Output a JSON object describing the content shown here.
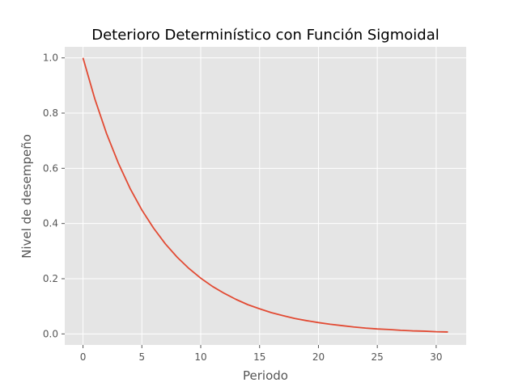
{
  "chart_data": {
    "type": "line",
    "title": "Deterioro Determinístico con Función Sigmoidal",
    "xlabel": "Periodo",
    "ylabel": "Nivel de desempeño",
    "xlim": [
      -1.55,
      32.55
    ],
    "ylim": [
      -0.04,
      1.04
    ],
    "xticks": [
      0,
      5,
      10,
      15,
      20,
      25,
      30
    ],
    "xtick_labels": [
      "0",
      "5",
      "10",
      "15",
      "20",
      "25",
      "30"
    ],
    "yticks": [
      0.0,
      0.2,
      0.4,
      0.6,
      0.8,
      1.0
    ],
    "ytick_labels": [
      "0.0",
      "0.2",
      "0.4",
      "0.6",
      "0.8",
      "1.0"
    ],
    "grid": true,
    "background": "#E5E5E5",
    "grid_color": "#FFFFFF",
    "series": [
      {
        "color": "#E24A33",
        "x": [
          0,
          1,
          2,
          3,
          4,
          5,
          6,
          7,
          8,
          9,
          10,
          11,
          12,
          13,
          14,
          15,
          16,
          17,
          18,
          19,
          20,
          21,
          22,
          23,
          24,
          25,
          26,
          27,
          28,
          29,
          30,
          31
        ],
        "y": [
          1.0,
          0.852,
          0.726,
          0.619,
          0.527,
          0.449,
          0.383,
          0.326,
          0.278,
          0.237,
          0.202,
          0.172,
          0.147,
          0.125,
          0.106,
          0.091,
          0.077,
          0.066,
          0.056,
          0.048,
          0.041,
          0.035,
          0.03,
          0.025,
          0.021,
          0.018,
          0.016,
          0.013,
          0.011,
          0.01,
          0.008,
          0.007
        ]
      }
    ]
  }
}
